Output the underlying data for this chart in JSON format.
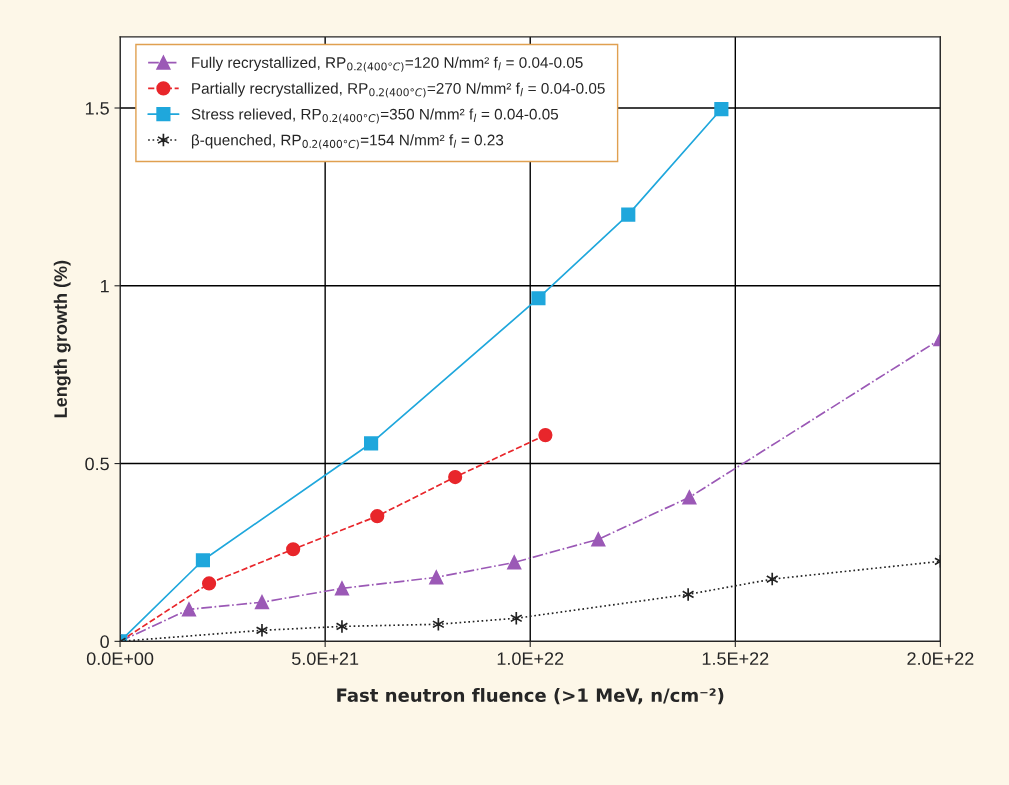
{
  "chart_data": {
    "type": "line",
    "xlabel": "Fast neutron fluence (>1 MeV, n/cm⁻²)",
    "ylabel": "Length growth (%)",
    "xlim": [
      0,
      2e+22
    ],
    "ylim": [
      0,
      1.7
    ],
    "xticks": [
      {
        "value": 0,
        "label": "0.0E+00"
      },
      {
        "value": 5e+21,
        "label": "5.0E+21"
      },
      {
        "value": 1e+22,
        "label": "1.0E+22"
      },
      {
        "value": 1.5e+22,
        "label": "1.5E+22"
      },
      {
        "value": 2e+22,
        "label": "2.0E+22"
      }
    ],
    "yticks": [
      0,
      0.5,
      1,
      1.5
    ],
    "grid": true,
    "legend": "top left",
    "series": [
      {
        "name": "Fully recrystallized, RP$_{0.2(400°C)}$=120 N/mm² f$_{l}$ = 0.04-0.05",
        "color": "#9b59b6",
        "marker": "triangle",
        "line_style": "dashdot",
        "x": [
          0,
          1.68e+21,
          3.46e+21,
          5.41e+21,
          7.71e+21,
          9.61e+21,
          1.166e+22,
          1.388e+22,
          2e+22
        ],
        "values": [
          0,
          0.09,
          0.11,
          0.149,
          0.18,
          0.222,
          0.287,
          0.405,
          0.85
        ]
      },
      {
        "name": "Partially recrystallized, RP$_{0.2(400°C)}$=270 N/mm² f$_{l}$ = 0.04-0.05",
        "color": "#e8262b",
        "marker": "circle",
        "line_style": "dashed",
        "x": [
          0,
          2.17e+21,
          4.22e+21,
          6.27e+21,
          8.17e+21,
          1.037e+22
        ],
        "values": [
          0,
          0.163,
          0.259,
          0.352,
          0.462,
          0.58
        ]
      },
      {
        "name": "Stress relieved, RP$_{0.2(400°C)}$=350 N/mm² f$_{l}$ = 0.04-0.05",
        "color": "#1fa7dc",
        "marker": "square",
        "line_style": "solid",
        "x": [
          0,
          2.02e+21,
          6.12e+21,
          1.02e+22,
          1.239e+22,
          1.466e+22
        ],
        "values": [
          0,
          0.228,
          0.557,
          0.965,
          1.2,
          1.497
        ]
      },
      {
        "name": "β-quenched, RP$_{0.2(400°C)}$=154 N/mm² f$_{l}$ = 0.23",
        "color": "#222222",
        "marker": "cross",
        "line_style": "dotted",
        "x": [
          0,
          3.46e+21,
          5.41e+21,
          7.76e+21,
          9.66e+21,
          1.385e+22,
          1.59e+22,
          2e+22
        ],
        "values": [
          0,
          0.031,
          0.042,
          0.048,
          0.065,
          0.132,
          0.175,
          0.225
        ]
      }
    ]
  }
}
